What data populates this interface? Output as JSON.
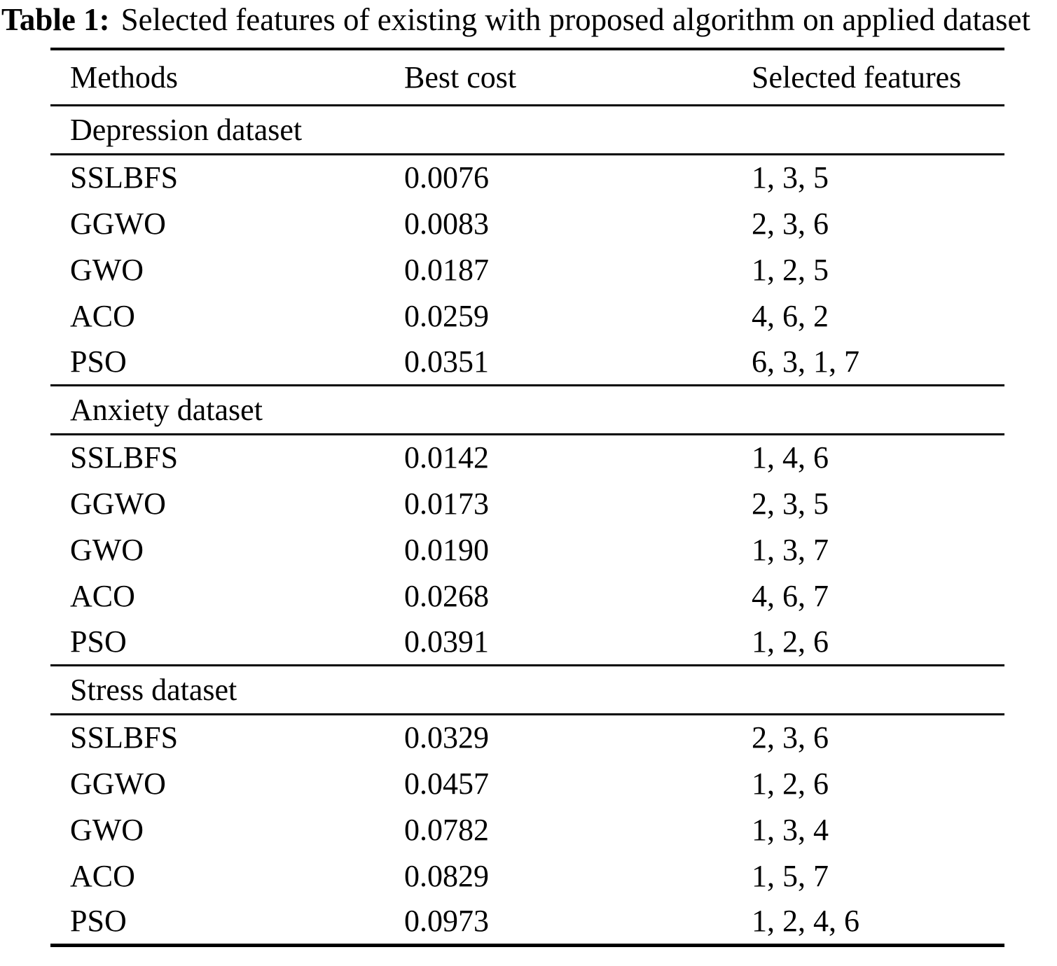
{
  "caption": {
    "label": "Table 1:",
    "text": "Selected features of existing with proposed algorithm on applied dataset"
  },
  "table": {
    "columns": [
      "Methods",
      "Best cost",
      "Selected features"
    ],
    "sections": [
      {
        "name": "Depression dataset",
        "rows": [
          {
            "method": "SSLBFS",
            "best_cost": "0.0076",
            "selected_features": "1, 3, 5"
          },
          {
            "method": "GGWO",
            "best_cost": "0.0083",
            "selected_features": "2, 3, 6"
          },
          {
            "method": "GWO",
            "best_cost": "0.0187",
            "selected_features": "1, 2, 5"
          },
          {
            "method": "ACO",
            "best_cost": "0.0259",
            "selected_features": "4, 6, 2"
          },
          {
            "method": "PSO",
            "best_cost": "0.0351",
            "selected_features": "6, 3, 1, 7"
          }
        ]
      },
      {
        "name": "Anxiety dataset",
        "rows": [
          {
            "method": "SSLBFS",
            "best_cost": "0.0142",
            "selected_features": "1, 4, 6"
          },
          {
            "method": "GGWO",
            "best_cost": "0.0173",
            "selected_features": "2, 3, 5"
          },
          {
            "method": "GWO",
            "best_cost": "0.0190",
            "selected_features": "1, 3, 7"
          },
          {
            "method": "ACO",
            "best_cost": "0.0268",
            "selected_features": "4, 6, 7"
          },
          {
            "method": "PSO",
            "best_cost": "0.0391",
            "selected_features": "1, 2, 6"
          }
        ]
      },
      {
        "name": "Stress dataset",
        "rows": [
          {
            "method": "SSLBFS",
            "best_cost": "0.0329",
            "selected_features": "2, 3, 6"
          },
          {
            "method": "GGWO",
            "best_cost": "0.0457",
            "selected_features": "1, 2, 6"
          },
          {
            "method": "GWO",
            "best_cost": "0.0782",
            "selected_features": "1, 3, 4"
          },
          {
            "method": "ACO",
            "best_cost": "0.0829",
            "selected_features": "1, 5, 7"
          },
          {
            "method": "PSO",
            "best_cost": "0.0973",
            "selected_features": "1, 2, 4, 6"
          }
        ]
      }
    ]
  }
}
